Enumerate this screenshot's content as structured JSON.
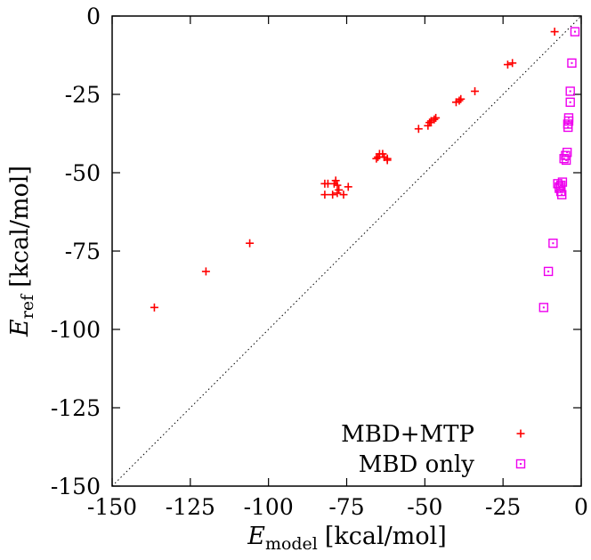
{
  "chart_data": {
    "type": "scatter",
    "xlabel": {
      "symbol": "E",
      "subscript": "model",
      "unit": "[kcal/mol]"
    },
    "ylabel": {
      "symbol": "E",
      "subscript": "ref",
      "unit": "[kcal/mol]"
    },
    "xlim": [
      -150,
      0
    ],
    "ylim": [
      -150,
      0
    ],
    "xticks": [
      -150,
      -125,
      -100,
      -75,
      -50,
      -25,
      0
    ],
    "yticks": [
      0,
      -25,
      -50,
      -75,
      -100,
      -125,
      -150
    ],
    "grid": false,
    "diagonal_reference_line": true,
    "legend_position": "bottom-right",
    "series": [
      {
        "name": "MBD+MTP",
        "marker": "plus",
        "color": "#ff0000",
        "points": [
          [
            -136.5,
            -93
          ],
          [
            -120,
            -81.5
          ],
          [
            -106,
            -72.5
          ],
          [
            -82,
            -53.5
          ],
          [
            -81,
            -53.5
          ],
          [
            -79,
            -53.5
          ],
          [
            -78.5,
            -52.5
          ],
          [
            -78,
            -54
          ],
          [
            -77.5,
            -55.5
          ],
          [
            -78,
            -56.5
          ],
          [
            -79.5,
            -57
          ],
          [
            -82,
            -57
          ],
          [
            -76,
            -57
          ],
          [
            -74.5,
            -54.5
          ],
          [
            -65.5,
            -45.5
          ],
          [
            -65,
            -45
          ],
          [
            -64.5,
            -44
          ],
          [
            -63.5,
            -44
          ],
          [
            -63,
            -45
          ],
          [
            -62,
            -46
          ],
          [
            -62,
            -45.5
          ],
          [
            -52,
            -36
          ],
          [
            -49,
            -35
          ],
          [
            -48.5,
            -34
          ],
          [
            -48,
            -33.5
          ],
          [
            -47,
            -33
          ],
          [
            -46.5,
            -32.5
          ],
          [
            -40,
            -27.5
          ],
          [
            -39,
            -27
          ],
          [
            -38.5,
            -26.5
          ],
          [
            -34,
            -24
          ],
          [
            -23.5,
            -15.5
          ],
          [
            -22,
            -15
          ],
          [
            -8.5,
            -5
          ]
        ]
      },
      {
        "name": "MBD only",
        "marker": "square-dot",
        "color": "#ee00ee",
        "points": [
          [
            -2,
            -5
          ],
          [
            -3,
            -15
          ],
          [
            -3.5,
            -24
          ],
          [
            -3.5,
            -27.5
          ],
          [
            -4,
            -32.5
          ],
          [
            -4,
            -33.5
          ],
          [
            -4.3,
            -34.5
          ],
          [
            -4.2,
            -35.5
          ],
          [
            -4.5,
            -43.5
          ],
          [
            -5,
            -44.5
          ],
          [
            -5.5,
            -45.5
          ],
          [
            -4.8,
            -46
          ],
          [
            -6,
            -53
          ],
          [
            -6.5,
            -54
          ],
          [
            -7,
            -55
          ],
          [
            -6.5,
            -56
          ],
          [
            -6.2,
            -57
          ],
          [
            -7.5,
            -53.5
          ],
          [
            -7,
            -54.5
          ],
          [
            -9,
            -72.5
          ],
          [
            -10.5,
            -81.5
          ],
          [
            -12,
            -93
          ]
        ]
      }
    ]
  }
}
